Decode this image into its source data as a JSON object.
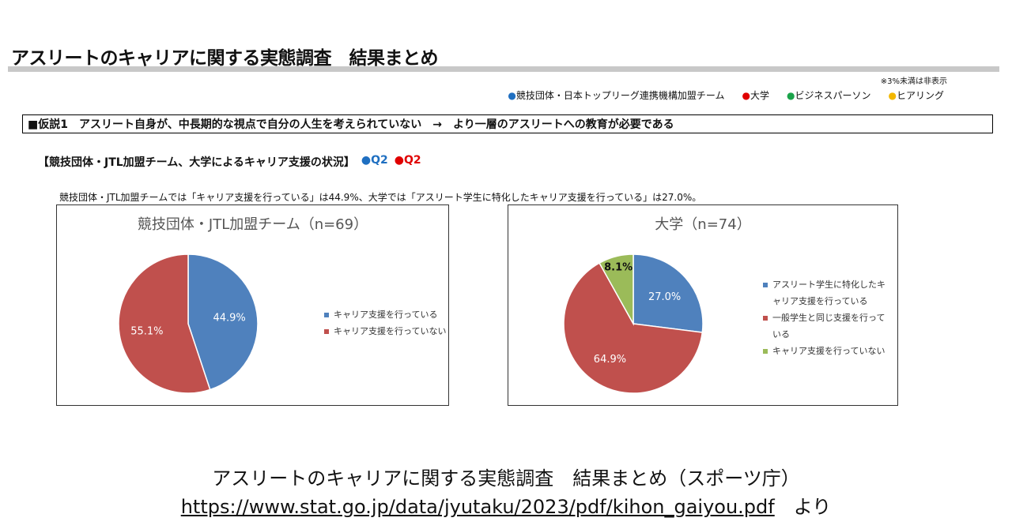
{
  "title": "アスリートのキャリアに関する実態調査　結果まとめ",
  "note": "※3%未満は非表示",
  "key": [
    {
      "label": "競技団体・日本トップリーグ連携機構加盟チーム",
      "color": "#1f6fc1"
    },
    {
      "label": "大学",
      "color": "#e00000"
    },
    {
      "label": "ビジネスパーソン",
      "color": "#1aa34a"
    },
    {
      "label": "ヒアリング",
      "color": "#f2b700"
    }
  ],
  "hypothesis": "■仮説1　アスリート自身が、中長期的な視点で自分の人生を考えられていない　→　より一層のアスリートへの教育が必要である",
  "section": "【競技団体・JTL加盟チーム、大学によるキャリア支援の状況】",
  "section_tags": [
    {
      "label": "Q2",
      "color": "#1f6fc1"
    },
    {
      "label": "Q2",
      "color": "#e00000"
    }
  ],
  "summary": "競技団体・JTL加盟チームでは「キャリア支援を行っている」は44.9%、大学では「アスリート学生に特化したキャリア支援を行っている」は27.0%。",
  "chart_data": [
    {
      "type": "pie",
      "title": "競技団体・JTL加盟チーム（n=69）",
      "categories": [
        "キャリア支援を行っている",
        "キャリア支援を行っていない"
      ],
      "values": [
        44.9,
        55.1
      ],
      "value_labels": [
        "44.9%",
        "55.1%"
      ],
      "colors": [
        "#4f81bd",
        "#c0504d"
      ]
    },
    {
      "type": "pie",
      "title": "大学（n=74）",
      "categories": [
        "アスリート学生に特化したキャリア支援を行っている",
        "一般学生と同じ支援を行っている",
        "キャリア支援を行っていない"
      ],
      "values": [
        27.0,
        64.9,
        8.1
      ],
      "value_labels": [
        "27.0%",
        "64.9%",
        "8.1%"
      ],
      "colors": [
        "#4f81bd",
        "#c0504d",
        "#9bbb59"
      ]
    }
  ],
  "caption": "アスリートのキャリアに関する実態調査　結果まとめ（スポーツ庁）",
  "link": "https://www.stat.go.jp/data/jyutaku/2023/pdf/kihon_gaiyou.pdf",
  "link_suffix": "より"
}
